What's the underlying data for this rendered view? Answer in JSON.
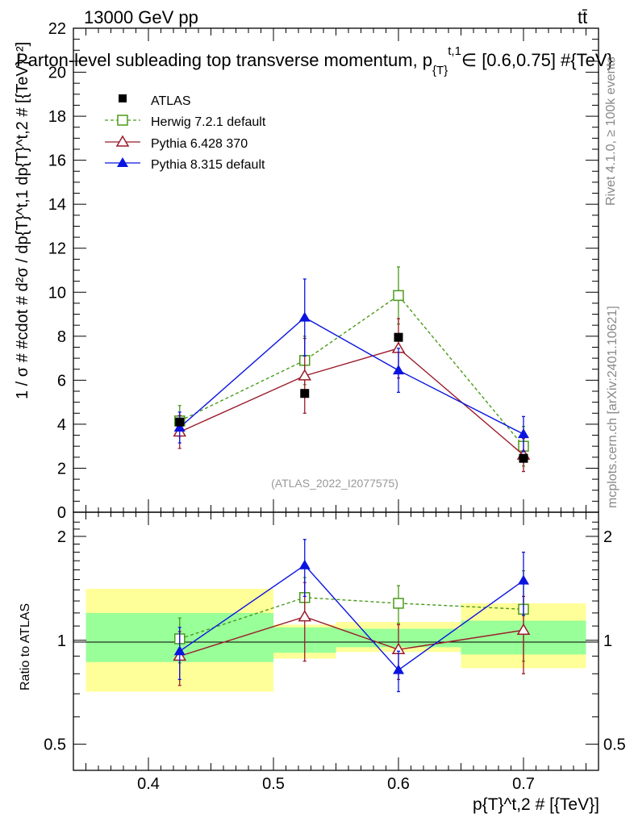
{
  "header": {
    "energy_label": "13000 GeV pp",
    "process_label": "tt̄",
    "title": "Parton-level subleading top transverse momentum, p",
    "title_sub": "{T}",
    "title_sup": "t,1",
    "title_tail": "∈ [0.6,0.75] #{TeV}",
    "watermark": "(ATLAS_2022_I2077575)",
    "side_label_rivet": "Rivet 4.1.0, ≥ 100k events",
    "side_label_mcplots": "mcplots.cern.ch [arXiv:2401.10621]"
  },
  "axes": {
    "main_ylabel": "1 / σ # #cdot # d²σ / dp{T}^t,1 dp{T}^t,2 # [{TeV}⁻²]",
    "ratio_ylabel": "Ratio to ATLAS",
    "xlabel": "p{T}^t,2 # [{TeV}]"
  },
  "legend": {
    "atlas": "ATLAS",
    "herwig": "Herwig 7.2.1 default",
    "pythia6": "Pythia 6.428 370",
    "pythia8": "Pythia 8.315 default"
  },
  "colors": {
    "atlas": "#000000",
    "herwig": "#4a9a1a",
    "pythia6": "#9b1b2a",
    "pythia8": "#0a14e0",
    "band_outer": "#ffff99",
    "band_inner": "#99ff99",
    "watermark": "#999999"
  },
  "chart_data": [
    {
      "type": "line",
      "panel": "main",
      "xlim": [
        0.34,
        0.76
      ],
      "ylim": [
        0,
        22
      ],
      "xticks": [
        0.4,
        0.5,
        0.6,
        0.7
      ],
      "yticks": [
        0,
        2,
        4,
        6,
        8,
        10,
        12,
        14,
        16,
        18,
        20,
        22
      ],
      "series": [
        {
          "name": "ATLAS",
          "marker": "square-filled",
          "x": [
            0.425,
            0.525,
            0.6,
            0.7
          ],
          "y": [
            4.1,
            5.4,
            7.95,
            2.45
          ],
          "err": [
            0.0,
            0.0,
            0.0,
            0.0
          ]
        },
        {
          "name": "Herwig 7.2.1 default",
          "marker": "square-open",
          "dash": true,
          "x": [
            0.425,
            0.525,
            0.6,
            0.7
          ],
          "y": [
            4.15,
            6.9,
            9.85,
            3.0
          ],
          "err": [
            0.7,
            1.1,
            1.3,
            0.9
          ]
        },
        {
          "name": "Pythia 6.428 370",
          "marker": "triangle-open",
          "x": [
            0.425,
            0.525,
            0.6,
            0.7
          ],
          "y": [
            3.65,
            6.2,
            7.45,
            2.6
          ],
          "err": [
            0.75,
            1.7,
            1.35,
            0.75
          ]
        },
        {
          "name": "Pythia 8.315 default",
          "marker": "triangle-filled",
          "x": [
            0.425,
            0.525,
            0.6,
            0.7
          ],
          "y": [
            3.85,
            8.85,
            6.45,
            3.55
          ],
          "err": [
            0.7,
            1.75,
            1.0,
            0.8
          ]
        }
      ]
    },
    {
      "type": "line",
      "panel": "ratio",
      "yscale": "log",
      "xlim": [
        0.34,
        0.76
      ],
      "ylim": [
        0.42,
        2.35
      ],
      "yticks": [
        0.5,
        1,
        2
      ],
      "bands": [
        {
          "x0": 0.35,
          "x1": 0.5,
          "outer": [
            0.71,
            1.41
          ],
          "inner": [
            0.865,
            1.2
          ]
        },
        {
          "x0": 0.5,
          "x1": 0.55,
          "outer": [
            0.885,
            1.11
          ],
          "inner": [
            0.92,
            1.09
          ]
        },
        {
          "x0": 0.55,
          "x1": 0.65,
          "outer": [
            0.925,
            1.13
          ],
          "inner": [
            0.955,
            1.08
          ]
        },
        {
          "x0": 0.65,
          "x1": 0.75,
          "outer": [
            0.83,
            1.28
          ],
          "inner": [
            0.91,
            1.14
          ]
        }
      ],
      "series": [
        {
          "name": "Herwig 7.2.1 default",
          "x": [
            0.425,
            0.525,
            0.6,
            0.7
          ],
          "y": [
            1.01,
            1.33,
            1.28,
            1.23
          ],
          "err": [
            0.15,
            0.19,
            0.16,
            0.36
          ]
        },
        {
          "name": "Pythia 6.428 370",
          "x": [
            0.425,
            0.525,
            0.6,
            0.7
          ],
          "y": [
            0.9,
            1.17,
            0.94,
            1.07
          ],
          "err": [
            0.16,
            0.3,
            0.17,
            0.27
          ]
        },
        {
          "name": "Pythia 8.315 default",
          "x": [
            0.425,
            0.525,
            0.6,
            0.7
          ],
          "y": [
            0.93,
            1.65,
            0.82,
            1.49
          ],
          "err": [
            0.16,
            0.31,
            0.11,
            0.31
          ]
        }
      ]
    }
  ]
}
